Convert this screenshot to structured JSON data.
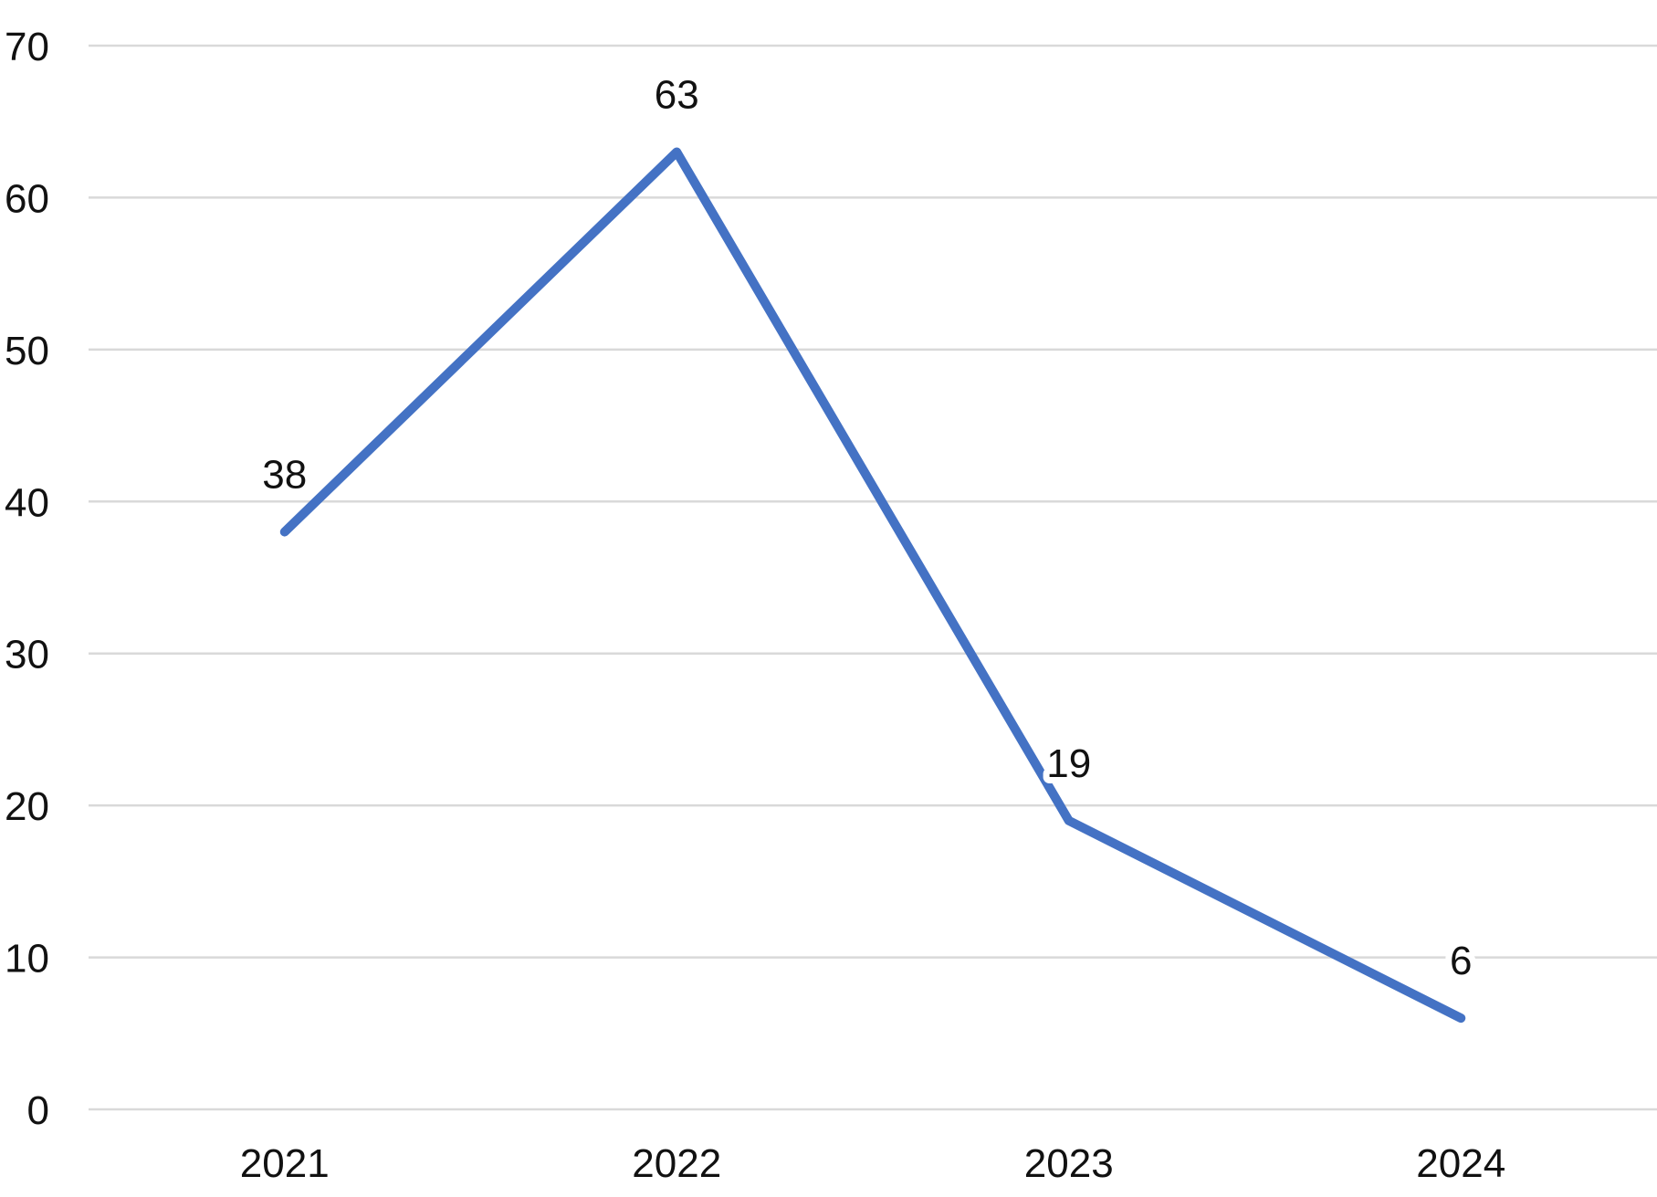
{
  "chart_data": {
    "type": "line",
    "title": "",
    "categories": [
      "2021",
      "2022",
      "2023",
      "2024"
    ],
    "values": [
      38,
      63,
      19,
      6
    ],
    "data_labels": [
      "38",
      "63",
      "19",
      "6"
    ],
    "data_label_position": "above",
    "xlabel": "",
    "ylabel": "",
    "ylim": [
      0,
      70
    ],
    "ytick_step": 10,
    "ytick_labels": [
      "0",
      "10",
      "20",
      "30",
      "40",
      "50",
      "60",
      "70"
    ],
    "grid": true,
    "legend": "none",
    "colors": {
      "line": "#4472C4",
      "gridline": "#D9D9D9",
      "axis_text": "#111111",
      "data_label_text": "#111111",
      "background": "#FFFFFF"
    }
  }
}
